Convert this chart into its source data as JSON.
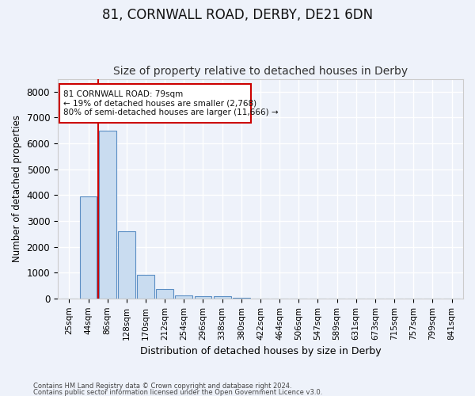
{
  "title1": "81, CORNWALL ROAD, DERBY, DE21 6DN",
  "title2": "Size of property relative to detached houses in Derby",
  "xlabel": "Distribution of detached houses by size in Derby",
  "ylabel": "Number of detached properties",
  "categories": [
    "25sqm",
    "44sqm",
    "86sqm",
    "128sqm",
    "170sqm",
    "212sqm",
    "254sqm",
    "296sqm",
    "338sqm",
    "380sqm",
    "422sqm",
    "464sqm",
    "506sqm",
    "547sqm",
    "589sqm",
    "631sqm",
    "673sqm",
    "715sqm",
    "757sqm",
    "799sqm",
    "841sqm"
  ],
  "bar_values": [
    4,
    3950,
    6500,
    2600,
    900,
    350,
    130,
    90,
    80,
    10,
    0,
    0,
    0,
    0,
    0,
    0,
    0,
    0,
    0,
    0,
    0
  ],
  "bar_color": "#c9dcf0",
  "bar_edge_color": "#5b8ec4",
  "vline_x": 1.5,
  "vline_color": "#cc0000",
  "annotation_line1": "81 CORNWALL ROAD: 79sqm",
  "annotation_line2": "← 19% of detached houses are smaller (2,768)",
  "annotation_line3": "80% of semi-detached houses are larger (11,666) →",
  "annotation_box_color": "#ffffff",
  "annotation_box_edge": "#cc0000",
  "ylim": [
    0,
    8500
  ],
  "yticks": [
    0,
    1000,
    2000,
    3000,
    4000,
    5000,
    6000,
    7000,
    8000
  ],
  "footer1": "Contains HM Land Registry data © Crown copyright and database right 2024.",
  "footer2": "Contains public sector information licensed under the Open Government Licence v3.0.",
  "bg_color": "#eef2fa",
  "grid_color": "#ffffff",
  "title1_fontsize": 12,
  "title2_fontsize": 10
}
